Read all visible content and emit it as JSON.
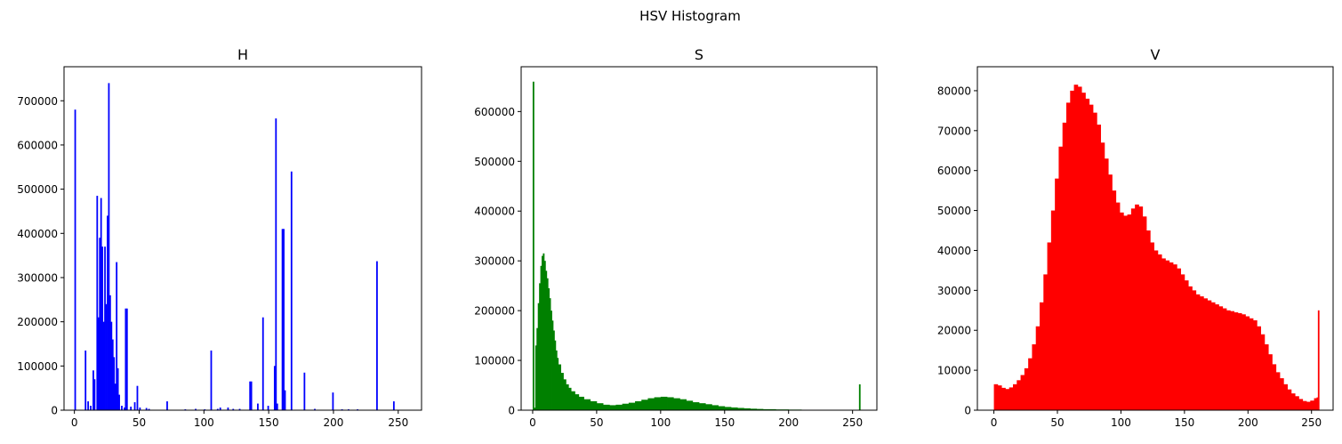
{
  "figure": {
    "suptitle": "HSV Histogram"
  },
  "chart_data": [
    {
      "type": "bar",
      "title": "H",
      "xlabel": "",
      "ylabel": "",
      "color": "#0000ff",
      "xlim": [
        -8,
        268
      ],
      "ylim": [
        0,
        777000
      ],
      "xticks": [
        0,
        50,
        100,
        150,
        200,
        250
      ],
      "yticks": [
        0,
        100000,
        200000,
        300000,
        400000,
        500000,
        600000,
        700000
      ],
      "grid": false,
      "points": [
        [
          0,
          680000
        ],
        [
          8,
          135000
        ],
        [
          10,
          20000
        ],
        [
          12,
          10000
        ],
        [
          14,
          90000
        ],
        [
          15,
          70000
        ],
        [
          17,
          485000
        ],
        [
          18,
          210000
        ],
        [
          19,
          390000
        ],
        [
          20,
          480000
        ],
        [
          21,
          370000
        ],
        [
          22,
          200000
        ],
        [
          23,
          370000
        ],
        [
          24,
          240000
        ],
        [
          25,
          440000
        ],
        [
          26,
          740000
        ],
        [
          27,
          260000
        ],
        [
          28,
          200000
        ],
        [
          29,
          160000
        ],
        [
          30,
          120000
        ],
        [
          31,
          60000
        ],
        [
          32,
          335000
        ],
        [
          33,
          95000
        ],
        [
          34,
          35000
        ],
        [
          36,
          10000
        ],
        [
          38,
          6000
        ],
        [
          39,
          230000
        ],
        [
          40,
          230000
        ],
        [
          43,
          8000
        ],
        [
          46,
          18000
        ],
        [
          48,
          55000
        ],
        [
          50,
          6000
        ],
        [
          55,
          5000
        ],
        [
          57,
          3000
        ],
        [
          71,
          20000
        ],
        [
          85,
          2000
        ],
        [
          93,
          3000
        ],
        [
          100,
          2000
        ],
        [
          105,
          135000
        ],
        [
          110,
          3000
        ],
        [
          112,
          6000
        ],
        [
          118,
          6000
        ],
        [
          122,
          3000
        ],
        [
          127,
          3000
        ],
        [
          135,
          65000
        ],
        [
          136,
          65000
        ],
        [
          141,
          15000
        ],
        [
          145,
          210000
        ],
        [
          149,
          10000
        ],
        [
          154,
          100000
        ],
        [
          155,
          660000
        ],
        [
          156,
          15000
        ],
        [
          160,
          410000
        ],
        [
          161,
          410000
        ],
        [
          162,
          45000
        ],
        [
          167,
          540000
        ],
        [
          177,
          85000
        ],
        [
          185,
          3000
        ],
        [
          199,
          40000
        ],
        [
          206,
          2000
        ],
        [
          211,
          2000
        ],
        [
          218,
          2000
        ],
        [
          233,
          337000
        ],
        [
          246,
          20000
        ]
      ]
    },
    {
      "type": "bar",
      "title": "S",
      "xlabel": "",
      "ylabel": "",
      "color": "#008000",
      "xlim": [
        -9,
        269
      ],
      "ylim": [
        0,
        690000
      ],
      "xticks": [
        0,
        50,
        100,
        150,
        200,
        250
      ],
      "yticks": [
        0,
        100000,
        200000,
        300000,
        400000,
        500000,
        600000
      ],
      "grid": false,
      "points": [
        [
          0,
          660000
        ],
        [
          1,
          5000
        ],
        [
          2,
          130000
        ],
        [
          3,
          165000
        ],
        [
          4,
          215000
        ],
        [
          5,
          255000
        ],
        [
          6,
          290000
        ],
        [
          7,
          310000
        ],
        [
          8,
          315000
        ],
        [
          9,
          300000
        ],
        [
          10,
          280000
        ],
        [
          11,
          265000
        ],
        [
          12,
          245000
        ],
        [
          13,
          225000
        ],
        [
          14,
          200000
        ],
        [
          15,
          180000
        ],
        [
          16,
          160000
        ],
        [
          17,
          140000
        ],
        [
          18,
          120000
        ],
        [
          19,
          105000
        ],
        [
          20,
          92000
        ],
        [
          22,
          75000
        ],
        [
          24,
          62000
        ],
        [
          26,
          52000
        ],
        [
          28,
          45000
        ],
        [
          30,
          38000
        ],
        [
          33,
          32000
        ],
        [
          36,
          27000
        ],
        [
          40,
          22000
        ],
        [
          45,
          18000
        ],
        [
          50,
          14000
        ],
        [
          55,
          11000
        ],
        [
          60,
          10000
        ],
        [
          65,
          11000
        ],
        [
          70,
          13000
        ],
        [
          75,
          15000
        ],
        [
          80,
          18000
        ],
        [
          85,
          21000
        ],
        [
          90,
          24000
        ],
        [
          95,
          26000
        ],
        [
          100,
          27000
        ],
        [
          105,
          26000
        ],
        [
          110,
          24000
        ],
        [
          115,
          22000
        ],
        [
          120,
          19000
        ],
        [
          125,
          16000
        ],
        [
          130,
          14000
        ],
        [
          135,
          12000
        ],
        [
          140,
          10000
        ],
        [
          145,
          8000
        ],
        [
          150,
          6500
        ],
        [
          155,
          5500
        ],
        [
          160,
          4500
        ],
        [
          165,
          3800
        ],
        [
          170,
          3000
        ],
        [
          175,
          2500
        ],
        [
          180,
          2000
        ],
        [
          190,
          1500
        ],
        [
          200,
          1200
        ],
        [
          210,
          900
        ],
        [
          220,
          700
        ],
        [
          230,
          500
        ],
        [
          240,
          400
        ],
        [
          250,
          300
        ],
        [
          255,
          52000
        ]
      ]
    },
    {
      "type": "bar",
      "title": "V",
      "xlabel": "",
      "ylabel": "",
      "color": "#ff0000",
      "xlim": [
        -13,
        267
      ],
      "ylim": [
        0,
        86000
      ],
      "xticks": [
        0,
        50,
        100,
        150,
        200,
        250
      ],
      "yticks": [
        0,
        10000,
        20000,
        30000,
        40000,
        50000,
        60000,
        70000,
        80000
      ],
      "grid": false,
      "points": [
        [
          0,
          6500
        ],
        [
          3,
          6200
        ],
        [
          6,
          5600
        ],
        [
          9,
          5300
        ],
        [
          12,
          5700
        ],
        [
          15,
          6500
        ],
        [
          18,
          7500
        ],
        [
          21,
          8800
        ],
        [
          24,
          10500
        ],
        [
          27,
          13000
        ],
        [
          30,
          16500
        ],
        [
          33,
          21000
        ],
        [
          36,
          27000
        ],
        [
          39,
          34000
        ],
        [
          42,
          42000
        ],
        [
          45,
          50000
        ],
        [
          48,
          58000
        ],
        [
          51,
          66000
        ],
        [
          54,
          72000
        ],
        [
          57,
          77000
        ],
        [
          60,
          80000
        ],
        [
          63,
          81500
        ],
        [
          66,
          81000
        ],
        [
          69,
          79500
        ],
        [
          72,
          78000
        ],
        [
          75,
          76500
        ],
        [
          78,
          74500
        ],
        [
          81,
          71500
        ],
        [
          84,
          67000
        ],
        [
          87,
          63000
        ],
        [
          90,
          59000
        ],
        [
          93,
          55000
        ],
        [
          96,
          52000
        ],
        [
          99,
          49500
        ],
        [
          102,
          48700
        ],
        [
          105,
          49000
        ],
        [
          108,
          50500
        ],
        [
          111,
          51500
        ],
        [
          114,
          51000
        ],
        [
          117,
          48500
        ],
        [
          120,
          45000
        ],
        [
          123,
          42000
        ],
        [
          126,
          40000
        ],
        [
          129,
          39000
        ],
        [
          132,
          38000
        ],
        [
          135,
          37500
        ],
        [
          138,
          37000
        ],
        [
          141,
          36500
        ],
        [
          144,
          35500
        ],
        [
          147,
          34000
        ],
        [
          150,
          32500
        ],
        [
          153,
          31000
        ],
        [
          156,
          30000
        ],
        [
          159,
          29000
        ],
        [
          162,
          28500
        ],
        [
          165,
          28000
        ],
        [
          168,
          27500
        ],
        [
          171,
          27000
        ],
        [
          174,
          26500
        ],
        [
          177,
          26000
        ],
        [
          180,
          25500
        ],
        [
          183,
          25000
        ],
        [
          186,
          24800
        ],
        [
          189,
          24500
        ],
        [
          192,
          24300
        ],
        [
          195,
          24000
        ],
        [
          198,
          23500
        ],
        [
          201,
          23000
        ],
        [
          204,
          22500
        ],
        [
          207,
          21000
        ],
        [
          210,
          19000
        ],
        [
          213,
          16500
        ],
        [
          216,
          14000
        ],
        [
          219,
          11500
        ],
        [
          222,
          9500
        ],
        [
          225,
          8000
        ],
        [
          228,
          6500
        ],
        [
          231,
          5200
        ],
        [
          234,
          4200
        ],
        [
          237,
          3500
        ],
        [
          240,
          2800
        ],
        [
          243,
          2300
        ],
        [
          246,
          2100
        ],
        [
          249,
          2400
        ],
        [
          252,
          3000
        ],
        [
          254,
          3200
        ],
        [
          255,
          25000
        ]
      ]
    }
  ]
}
